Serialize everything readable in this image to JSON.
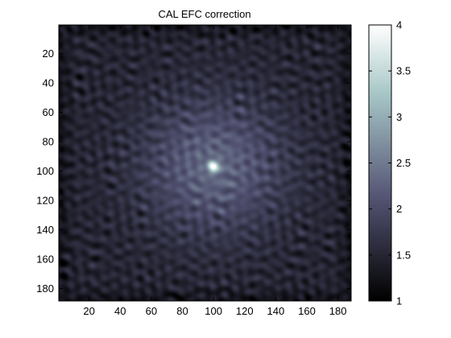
{
  "chart_data": {
    "type": "heatmap",
    "title": "CAL EFC correction",
    "xlabel": "",
    "ylabel": "",
    "grid": false,
    "colormap": "bone",
    "image_size": [
      188,
      188
    ],
    "xlim": [
      0.5,
      188.5
    ],
    "ylim": [
      0.5,
      188.5
    ],
    "y_reversed": true,
    "x_ticks": [
      20,
      40,
      60,
      80,
      100,
      120,
      140,
      160,
      180
    ],
    "y_ticks": [
      20,
      40,
      60,
      80,
      100,
      120,
      140,
      160,
      180
    ],
    "center": [
      99,
      96
    ],
    "peak_value": 4.0,
    "background_value": 1.5,
    "colorbar": {
      "position": "right",
      "range": [
        1,
        4
      ],
      "ticks": [
        1,
        1.5,
        2,
        2.5,
        3,
        3.5,
        4
      ],
      "tick_labels": [
        "1",
        "1.5",
        "2",
        "2.5",
        "3",
        "3.5",
        "4"
      ]
    },
    "colors": {
      "low": "#000000",
      "mid": "#545473",
      "high": "#ffffff"
    }
  }
}
